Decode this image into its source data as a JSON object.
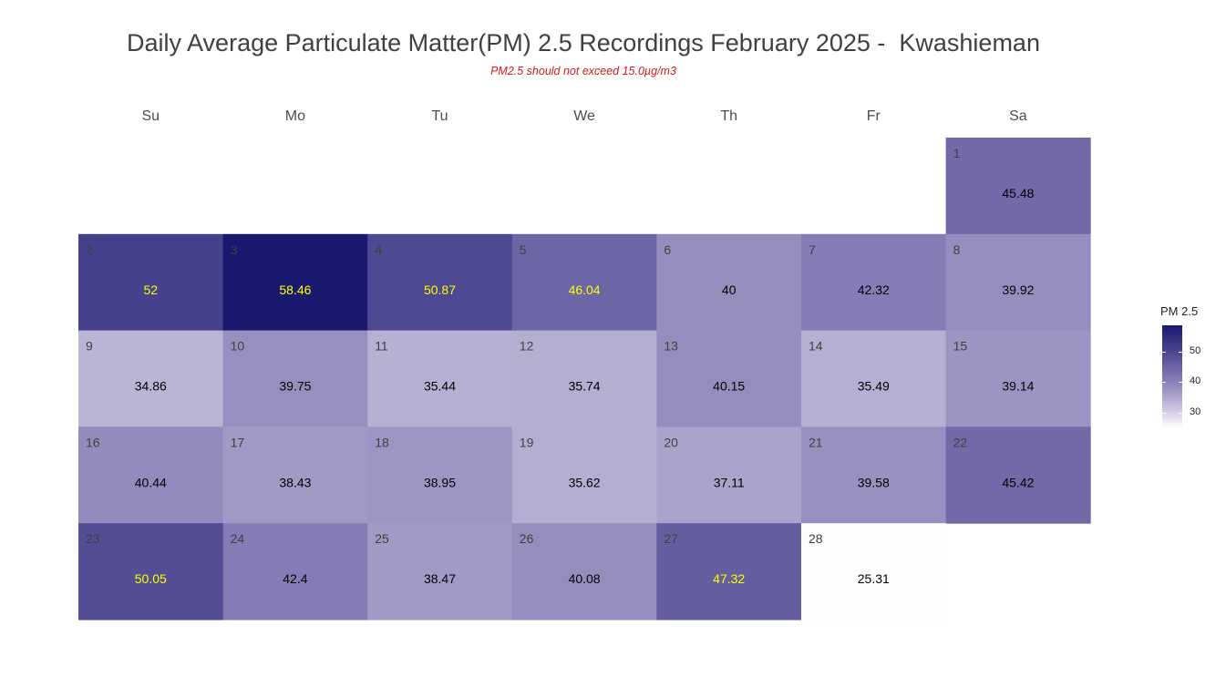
{
  "title": "Daily Average Particulate Matter(PM) 2.5 Recordings February 2025 -  Kwashieman",
  "subtitle": "PM2.5 should not exceed 15.0µg/m3",
  "chart_data": {
    "type": "heatmap",
    "title": "Daily Average Particulate Matter(PM) 2.5 Recordings February 2025 -  Kwashieman",
    "subtitle": "PM2.5 should not exceed 15.0µg/m3",
    "weekdays": [
      "Su",
      "Mo",
      "Tu",
      "We",
      "Th",
      "Fr",
      "Sa"
    ],
    "first_weekday_index": 6,
    "days": [
      {
        "day": "1",
        "value": "45.48"
      },
      {
        "day": "2",
        "value": "52"
      },
      {
        "day": "3",
        "value": "58.46"
      },
      {
        "day": "4",
        "value": "50.87"
      },
      {
        "day": "5",
        "value": "46.04"
      },
      {
        "day": "6",
        "value": "40"
      },
      {
        "day": "7",
        "value": "42.32"
      },
      {
        "day": "8",
        "value": "39.92"
      },
      {
        "day": "9",
        "value": "34.86"
      },
      {
        "day": "10",
        "value": "39.75"
      },
      {
        "day": "11",
        "value": "35.44"
      },
      {
        "day": "12",
        "value": "35.74"
      },
      {
        "day": "13",
        "value": "40.15"
      },
      {
        "day": "14",
        "value": "35.49"
      },
      {
        "day": "15",
        "value": "39.14"
      },
      {
        "day": "16",
        "value": "40.44"
      },
      {
        "day": "17",
        "value": "38.43"
      },
      {
        "day": "18",
        "value": "38.95"
      },
      {
        "day": "19",
        "value": "35.62"
      },
      {
        "day": "20",
        "value": "37.11"
      },
      {
        "day": "21",
        "value": "39.58"
      },
      {
        "day": "22",
        "value": "45.42"
      },
      {
        "day": "23",
        "value": "50.05"
      },
      {
        "day": "24",
        "value": "42.4"
      },
      {
        "day": "25",
        "value": "38.47"
      },
      {
        "day": "26",
        "value": "40.08"
      },
      {
        "day": "27",
        "value": "47.32"
      },
      {
        "day": "28",
        "value": "25.31"
      }
    ],
    "color_scale": {
      "low": "#ffffff",
      "mid": "#8a80b8",
      "high": "#191970",
      "min": 25,
      "max": 58.5
    },
    "label_colors": {
      "dark": "#000000",
      "highlight": "#ffff00",
      "threshold": 46
    },
    "legend": {
      "title": "PM 2.5",
      "ticks": [
        "30",
        "40",
        "50"
      ],
      "position": "right"
    }
  }
}
